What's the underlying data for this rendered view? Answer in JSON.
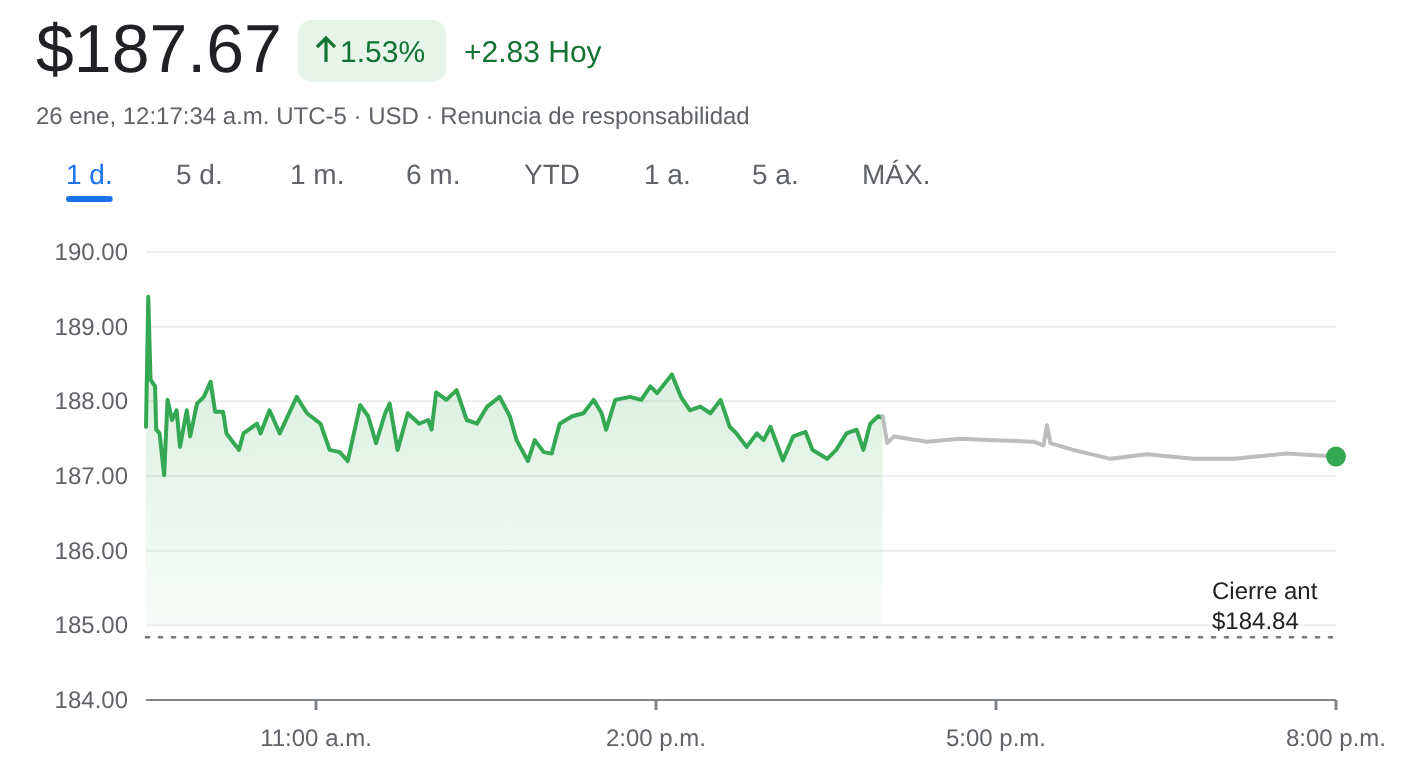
{
  "chart_data": {
    "type": "line",
    "title": "$187.67",
    "subtitle": "26 ene, 12:17:34 a.m. UTC-5 · USD · Renuncia de responsabilidad",
    "annotations": [
      "1.53%",
      "+2.83 Hoy",
      "1 d.",
      "5 d.",
      "1 m.",
      "6 m.",
      "YTD",
      "1 a.",
      "5 a.",
      "MÁX."
    ],
    "xlim": [
      9.5,
      20
    ],
    "xticks": [
      {
        "value": 11,
        "label": "11:00 a.m."
      },
      {
        "value": 14,
        "label": "2:00 p.m."
      },
      {
        "value": 17,
        "label": "5:00 p.m."
      },
      {
        "value": 20,
        "label": "8:00 p.m."
      }
    ],
    "ylim": [
      184,
      190
    ],
    "yticks": [
      {
        "value": 184,
        "label": "184.00"
      },
      {
        "value": 185,
        "label": "185.00"
      },
      {
        "value": 186,
        "label": "186.00"
      },
      {
        "value": 187,
        "label": "187.00"
      },
      {
        "value": 188,
        "label": "188.00"
      },
      {
        "value": 189,
        "label": "189.00"
      },
      {
        "value": 190,
        "label": "190.00"
      }
    ],
    "grid": "y",
    "marker": "none",
    "line_style": "solid",
    "ref_lines": [
      {
        "axis": "y",
        "value": 184.84,
        "label": "Cierre ant\n$184.84",
        "line_style": "dotted",
        "color": "#757575"
      }
    ],
    "series": [
      {
        "type": "area",
        "color": "#34a853",
        "x": [
          9.5,
          9.52,
          9.54,
          9.58,
          9.59,
          9.62,
          9.66,
          9.69,
          9.73,
          9.77,
          9.8,
          9.86,
          9.89,
          9.95,
          10.01,
          10.07,
          10.11,
          10.18,
          10.21,
          10.32,
          10.36,
          10.48,
          10.51,
          10.59,
          10.68,
          10.83,
          10.92,
          11.04,
          11.12,
          11.21,
          11.28,
          11.39,
          11.46,
          11.53,
          11.61,
          11.65,
          11.72,
          11.81,
          11.91,
          11.99,
          12.02,
          12.06,
          12.15,
          12.24,
          12.33,
          12.42,
          12.51,
          12.62,
          12.71,
          12.77,
          12.87,
          12.93,
          13.01,
          13.08,
          13.15,
          13.26,
          13.36,
          13.45,
          13.52,
          13.56,
          13.64,
          13.77,
          13.87,
          13.95,
          14.01,
          14.14,
          14.22,
          14.3,
          14.39,
          14.48,
          14.57,
          14.65,
          14.71,
          14.8,
          14.89,
          14.95,
          15.01,
          15.12,
          15.21,
          15.32,
          15.38,
          15.51,
          15.59,
          15.68,
          15.77,
          15.83,
          15.89,
          15.96,
          16.0
        ],
        "values": [
          187.66,
          189.4,
          188.29,
          188.2,
          187.62,
          187.57,
          187.01,
          188.02,
          187.75,
          187.88,
          187.39,
          187.88,
          187.53,
          187.97,
          188.06,
          188.26,
          187.86,
          187.86,
          187.57,
          187.35,
          187.57,
          187.7,
          187.57,
          187.88,
          187.57,
          188.06,
          187.84,
          187.7,
          187.35,
          187.32,
          187.2,
          187.95,
          187.8,
          187.44,
          187.84,
          187.97,
          187.35,
          187.84,
          187.7,
          187.75,
          187.62,
          188.12,
          188.02,
          188.15,
          187.75,
          187.7,
          187.93,
          188.06,
          187.8,
          187.48,
          187.2,
          187.48,
          187.32,
          187.3,
          187.7,
          187.8,
          187.84,
          188.02,
          187.84,
          187.62,
          188.02,
          188.06,
          188.02,
          188.2,
          188.11,
          188.36,
          188.06,
          187.88,
          187.93,
          187.84,
          188.02,
          187.66,
          187.57,
          187.39,
          187.57,
          187.48,
          187.66,
          187.21,
          187.53,
          187.59,
          187.35,
          187.23,
          187.35,
          187.57,
          187.62,
          187.35,
          187.7,
          187.8,
          187.78
        ]
      },
      {
        "type": "line",
        "color": "#bdbdbd",
        "x": [
          16.0,
          16.04,
          16.1,
          16.39,
          16.68,
          16.98,
          17.33,
          17.42,
          17.45,
          17.48,
          17.68,
          18.01,
          18.33,
          18.74,
          19.1,
          19.56,
          20.0
        ],
        "values": [
          187.8,
          187.44,
          187.53,
          187.46,
          187.5,
          187.48,
          187.46,
          187.41,
          187.68,
          187.44,
          187.35,
          187.23,
          187.29,
          187.23,
          187.23,
          187.3,
          187.26
        ]
      },
      {
        "type": "scatter",
        "color": "#34a853",
        "marker": "circle",
        "x": [
          20.0
        ],
        "values": [
          187.26
        ]
      }
    ]
  }
}
